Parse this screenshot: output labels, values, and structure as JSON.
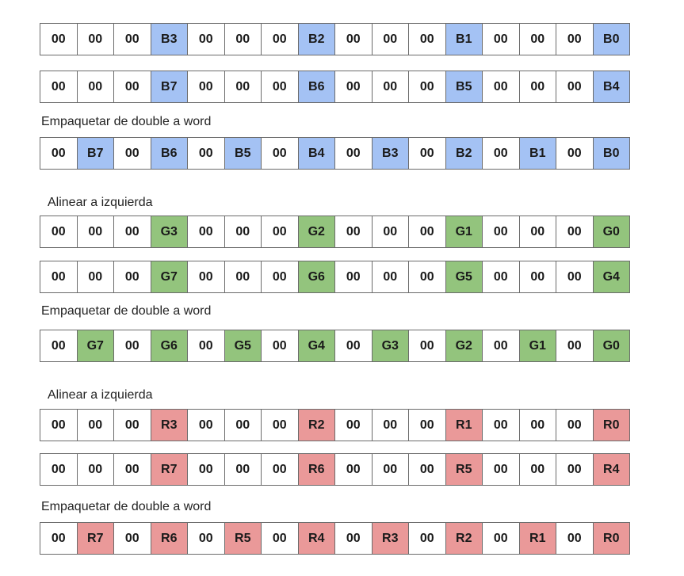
{
  "colors": {
    "blue": "#a4c2f4",
    "green": "#93c47d",
    "red": "#ea9999"
  },
  "rows": [
    {
      "color": "blue",
      "cells": [
        "00",
        "00",
        "00",
        "B3",
        "00",
        "00",
        "00",
        "B2",
        "00",
        "00",
        "00",
        "B1",
        "00",
        "00",
        "00",
        "B0"
      ]
    },
    {
      "color": "blue",
      "cells": [
        "00",
        "00",
        "00",
        "B7",
        "00",
        "00",
        "00",
        "B6",
        "00",
        "00",
        "00",
        "B5",
        "00",
        "00",
        "00",
        "B4"
      ]
    },
    {
      "color": "blue",
      "cells": [
        "00",
        "B7",
        "00",
        "B6",
        "00",
        "B5",
        "00",
        "B4",
        "00",
        "B3",
        "00",
        "B2",
        "00",
        "B1",
        "00",
        "B0"
      ]
    },
    {
      "color": "green",
      "cells": [
        "00",
        "00",
        "00",
        "G3",
        "00",
        "00",
        "00",
        "G2",
        "00",
        "00",
        "00",
        "G1",
        "00",
        "00",
        "00",
        "G0"
      ]
    },
    {
      "color": "green",
      "cells": [
        "00",
        "00",
        "00",
        "G7",
        "00",
        "00",
        "00",
        "G6",
        "00",
        "00",
        "00",
        "G5",
        "00",
        "00",
        "00",
        "G4"
      ]
    },
    {
      "color": "green",
      "cells": [
        "00",
        "G7",
        "00",
        "G6",
        "00",
        "G5",
        "00",
        "G4",
        "00",
        "G3",
        "00",
        "G2",
        "00",
        "G1",
        "00",
        "G0"
      ]
    },
    {
      "color": "red",
      "cells": [
        "00",
        "00",
        "00",
        "R3",
        "00",
        "00",
        "00",
        "R2",
        "00",
        "00",
        "00",
        "R1",
        "00",
        "00",
        "00",
        "R0"
      ]
    },
    {
      "color": "red",
      "cells": [
        "00",
        "00",
        "00",
        "R7",
        "00",
        "00",
        "00",
        "R6",
        "00",
        "00",
        "00",
        "R5",
        "00",
        "00",
        "00",
        "R4"
      ]
    },
    {
      "color": "red",
      "cells": [
        "00",
        "R7",
        "00",
        "R6",
        "00",
        "R5",
        "00",
        "R4",
        "00",
        "R3",
        "00",
        "R2",
        "00",
        "R1",
        "00",
        "R0"
      ]
    }
  ],
  "labels": {
    "pack_blue": "Empaquetar de double a word",
    "align_green": "Alinear a izquierda",
    "pack_green": "Empaquetar de double a word",
    "align_red": "Alinear a izquierda",
    "pack_red": "Empaquetar de double a word"
  }
}
